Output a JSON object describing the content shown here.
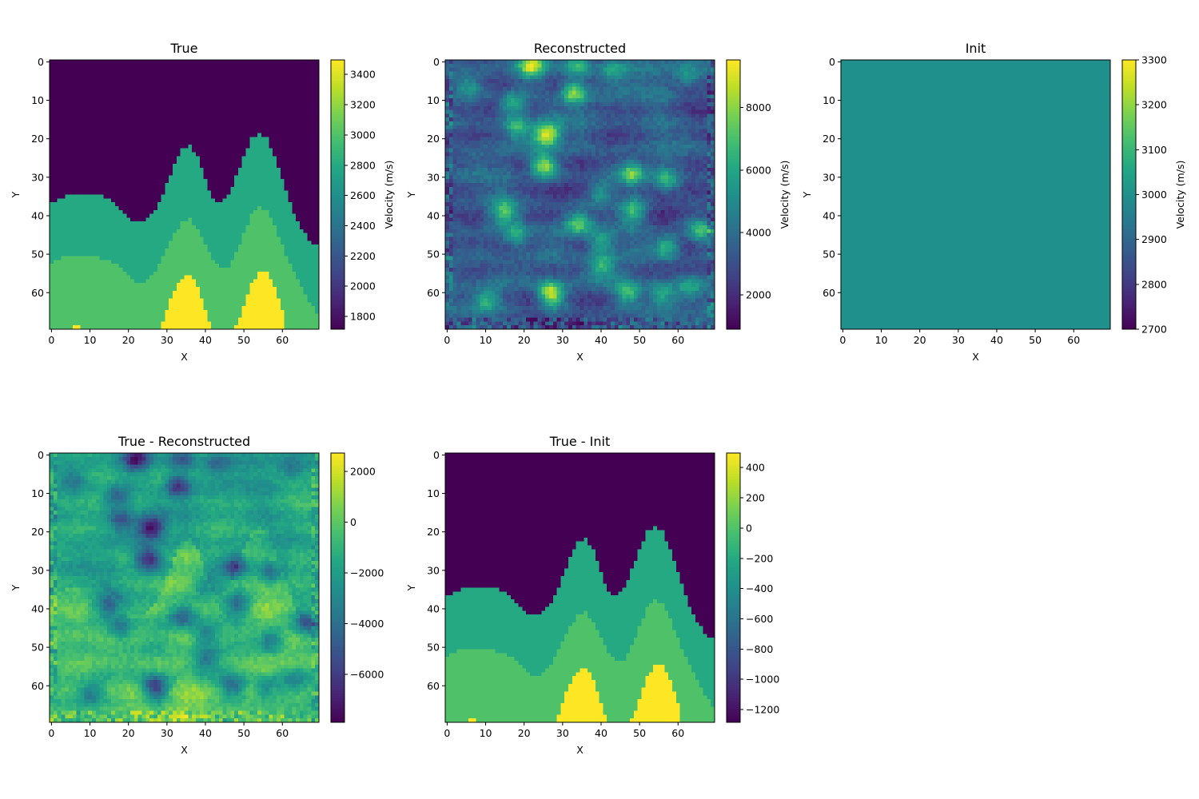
{
  "figure": {
    "panel_count": 5,
    "grid": "2x3"
  },
  "chart_data": [
    {
      "id": "true",
      "type": "heatmap",
      "title": "True",
      "xlabel": "X",
      "ylabel": "Y",
      "colorbar_label": "Velocity (m/s)",
      "colormap": "viridis",
      "shape": [
        70,
        70
      ],
      "vmin": 1716,
      "vmax": 3496,
      "xticks": [
        0,
        10,
        20,
        30,
        40,
        50,
        60
      ],
      "yticks": [
        0,
        10,
        20,
        30,
        40,
        50,
        60
      ],
      "cbar_ticks": [
        1800,
        2000,
        2200,
        2400,
        2600,
        2800,
        3000,
        3200,
        3400
      ],
      "layer_values": {
        "top": 1716,
        "layer2": 2800,
        "layer3": 3000,
        "anomaly": 3496
      },
      "interface1": [
        [
          0,
          37
        ],
        [
          2,
          36
        ],
        [
          4,
          35
        ],
        [
          12,
          35
        ],
        [
          15,
          36
        ],
        [
          18,
          39
        ],
        [
          21,
          42
        ],
        [
          24,
          42
        ],
        [
          26,
          40
        ],
        [
          28,
          37
        ],
        [
          30,
          32
        ],
        [
          32,
          27
        ],
        [
          34,
          23
        ],
        [
          36,
          22
        ],
        [
          38,
          25
        ],
        [
          40,
          31
        ],
        [
          42,
          36
        ],
        [
          44,
          37
        ],
        [
          46,
          35
        ],
        [
          48,
          30
        ],
        [
          50,
          25
        ],
        [
          52,
          20
        ],
        [
          54,
          19
        ],
        [
          56,
          20
        ],
        [
          58,
          25
        ],
        [
          60,
          31
        ],
        [
          62,
          37
        ],
        [
          64,
          42
        ],
        [
          66,
          45
        ],
        [
          68,
          48
        ],
        [
          69,
          48
        ]
      ],
      "interface2": [
        [
          0,
          53
        ],
        [
          1,
          52
        ],
        [
          4,
          51
        ],
        [
          12,
          51
        ],
        [
          14,
          52
        ],
        [
          17,
          53
        ],
        [
          20,
          56
        ],
        [
          22,
          58
        ],
        [
          24,
          58
        ],
        [
          26,
          56
        ],
        [
          28,
          53
        ],
        [
          30,
          49
        ],
        [
          32,
          45
        ],
        [
          34,
          42
        ],
        [
          36,
          41
        ],
        [
          38,
          44
        ],
        [
          40,
          48
        ],
        [
          42,
          52
        ],
        [
          44,
          54
        ],
        [
          46,
          54
        ],
        [
          48,
          50
        ],
        [
          50,
          45
        ],
        [
          52,
          40
        ],
        [
          54,
          38
        ],
        [
          56,
          39
        ],
        [
          58,
          43
        ],
        [
          60,
          48
        ],
        [
          62,
          53
        ],
        [
          64,
          57
        ],
        [
          66,
          61
        ],
        [
          68,
          64
        ],
        [
          69,
          66
        ]
      ],
      "anomaly_tops": [
        [
          [
            29,
            68
          ],
          [
            30,
            65
          ],
          [
            31,
            62
          ],
          [
            32,
            60
          ],
          [
            33,
            58
          ],
          [
            34,
            57
          ],
          [
            35,
            56
          ],
          [
            36,
            56
          ],
          [
            37,
            57
          ],
          [
            38,
            59
          ],
          [
            39,
            62
          ],
          [
            40,
            65
          ],
          [
            41,
            68
          ]
        ],
        [
          [
            48,
            69
          ],
          [
            49,
            67
          ],
          [
            50,
            64
          ],
          [
            51,
            61
          ],
          [
            52,
            58
          ],
          [
            53,
            57
          ],
          [
            54,
            55
          ],
          [
            55,
            55
          ],
          [
            56,
            55
          ],
          [
            57,
            57
          ],
          [
            58,
            59
          ],
          [
            59,
            62
          ],
          [
            60,
            65
          ]
        ],
        [
          [
            6,
            69
          ],
          [
            7,
            69
          ]
        ]
      ]
    },
    {
      "id": "reconstructed",
      "type": "heatmap",
      "title": "Reconstructed",
      "xlabel": "X",
      "ylabel": "Y",
      "colorbar_label": "Velocity (m/s)",
      "colormap": "viridis",
      "shape": [
        70,
        70
      ],
      "vmin": 900,
      "vmax": 9530,
      "xticks": [
        0,
        10,
        20,
        30,
        40,
        50,
        60
      ],
      "yticks": [
        0,
        10,
        20,
        30,
        40,
        50,
        60
      ],
      "cbar_ticks": [
        2000,
        4000,
        6000,
        8000
      ],
      "background": 3300,
      "anomalies": [
        [
          33,
          8,
          8200
        ],
        [
          26,
          19,
          9300
        ],
        [
          25,
          27,
          8600
        ],
        [
          17,
          11,
          6500
        ],
        [
          18,
          17,
          6600
        ],
        [
          40,
          34,
          6200
        ],
        [
          48,
          29,
          7800
        ],
        [
          57,
          31,
          6600
        ],
        [
          48,
          39,
          6600
        ],
        [
          34,
          42,
          6700
        ],
        [
          40,
          47,
          6000
        ],
        [
          40,
          53,
          6200
        ],
        [
          27,
          60,
          8800
        ],
        [
          47,
          60,
          7200
        ],
        [
          56,
          60,
          6200
        ],
        [
          63,
          59,
          6000
        ],
        [
          57,
          48,
          6600
        ],
        [
          15,
          39,
          6600
        ],
        [
          18,
          45,
          6000
        ],
        [
          10,
          62,
          6200
        ],
        [
          22,
          1,
          8400
        ],
        [
          34,
          1,
          6200
        ],
        [
          43,
          2,
          6200
        ],
        [
          5,
          6,
          5200
        ],
        [
          63,
          4,
          5400
        ],
        [
          66,
          44,
          6800
        ]
      ]
    },
    {
      "id": "init",
      "type": "heatmap",
      "title": "Init",
      "xlabel": "X",
      "ylabel": "Y",
      "colorbar_label": "Velocity (m/s)",
      "colormap": "viridis",
      "shape": [
        70,
        70
      ],
      "vmin": 2700,
      "vmax": 3300,
      "xticks": [
        0,
        10,
        20,
        30,
        40,
        50,
        60
      ],
      "yticks": [
        0,
        10,
        20,
        30,
        40,
        50,
        60
      ],
      "cbar_ticks": [
        2700,
        2800,
        2900,
        3000,
        3100,
        3200,
        3300
      ],
      "constant": 3000
    },
    {
      "id": "true-minus-reconstructed",
      "type": "heatmap",
      "title": "True - Reconstructed",
      "xlabel": "X",
      "ylabel": "Y",
      "colorbar_label": "",
      "colormap": "viridis",
      "shape": [
        70,
        70
      ],
      "vmin": -7880,
      "vmax": 2720,
      "xticks": [
        0,
        10,
        20,
        30,
        40,
        50,
        60
      ],
      "yticks": [
        0,
        10,
        20,
        30,
        40,
        50,
        60
      ],
      "cbar_ticks": [
        -6000,
        -4000,
        -2000,
        0,
        2000
      ],
      "derived": [
        "true",
        "reconstructed"
      ]
    },
    {
      "id": "true-minus-init",
      "type": "heatmap",
      "title": "True - Init",
      "xlabel": "X",
      "ylabel": "Y",
      "colorbar_label": "",
      "colormap": "viridis",
      "shape": [
        70,
        70
      ],
      "vmin": -1284,
      "vmax": 496,
      "xticks": [
        0,
        10,
        20,
        30,
        40,
        50,
        60
      ],
      "yticks": [
        0,
        10,
        20,
        30,
        40,
        50,
        60
      ],
      "cbar_ticks": [
        -1200,
        -1000,
        -800,
        -600,
        -400,
        -200,
        0,
        200,
        400
      ],
      "derived": [
        "true",
        "init"
      ]
    }
  ]
}
